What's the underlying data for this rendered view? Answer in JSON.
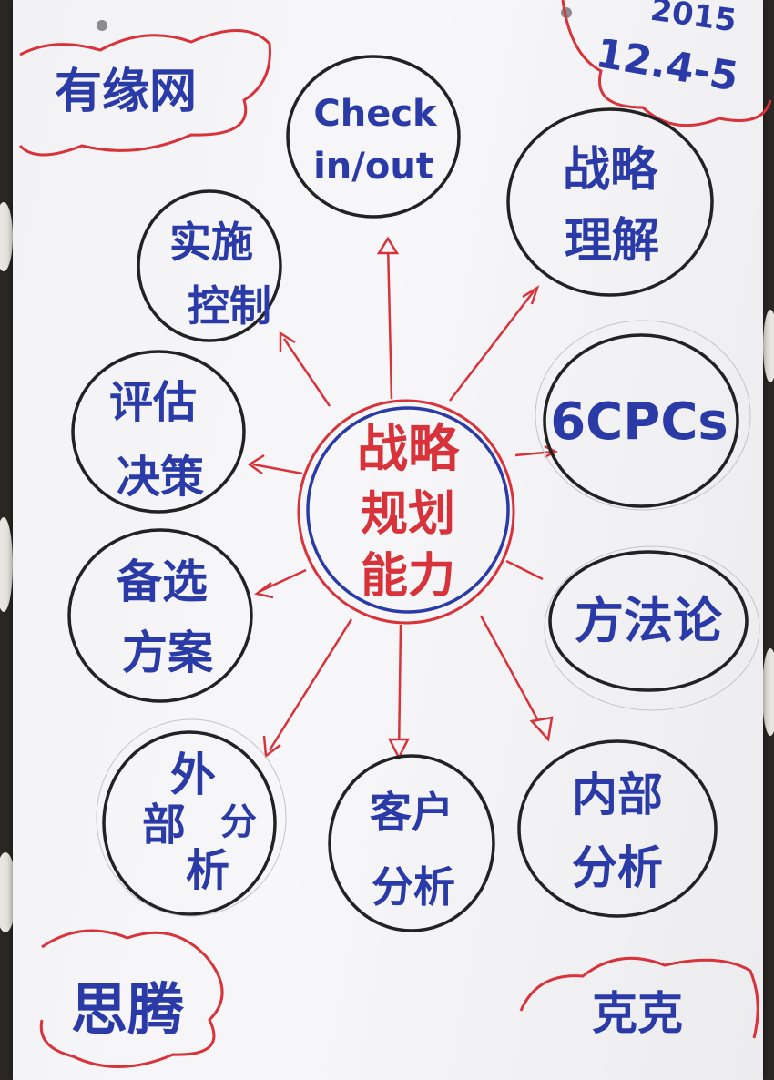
{
  "colors": {
    "marker_blue": "#2a3aa6",
    "marker_red": "#d8323a",
    "marker_black": "#222222",
    "paper": "#f4f4f6"
  },
  "corners": {
    "top_left": "有缘网",
    "top_right_line1": "2015",
    "top_right_line2": "12.4-5",
    "bottom_left": "思腾",
    "bottom_right": "克克"
  },
  "center": {
    "line1": "战略",
    "line2": "规划",
    "line3": "能力"
  },
  "nodes": {
    "check": {
      "line1": "Check",
      "line2": "in/out"
    },
    "strategy_understanding": {
      "line1": "战略",
      "line2": "理解"
    },
    "implementation_control": {
      "line1": "实施",
      "line2": "控制"
    },
    "six_cpcs": {
      "line1": "6CPCs"
    },
    "evaluation_decision": {
      "line1": "评估",
      "line2": "决策"
    },
    "methodology": {
      "line1": "方法论"
    },
    "alternatives": {
      "line1": "备选",
      "line2": "方案"
    },
    "external_analysis": {
      "line1": "外",
      "line2": "部",
      "line3": "分",
      "line4": "析"
    },
    "customer_analysis": {
      "line1": "客户",
      "line2": "分析"
    },
    "internal_analysis": {
      "line1": "内部",
      "line2": "分析"
    }
  }
}
